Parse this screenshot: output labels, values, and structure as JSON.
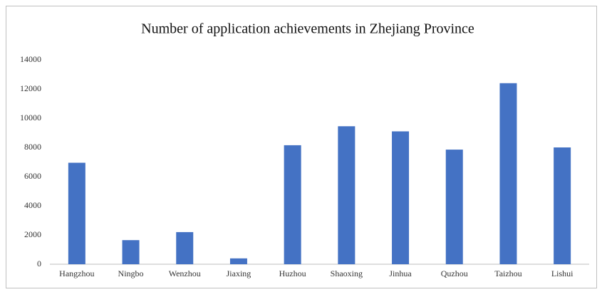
{
  "chart_data": {
    "type": "bar",
    "title": "Number of application achievements in Zhejiang Province",
    "categories": [
      "Hangzhou",
      "Ningbo",
      "Wenzhou",
      "Jiaxing",
      "Huzhou",
      "Shaoxing",
      "Jinhua",
      "Quzhou",
      "Taizhou",
      "Lishui"
    ],
    "values": [
      6950,
      1650,
      2200,
      400,
      8150,
      9450,
      9100,
      7850,
      12400,
      8000
    ],
    "color": "#4472c4",
    "ylim": [
      0,
      14000
    ],
    "yticks": [
      0,
      2000,
      4000,
      6000,
      8000,
      10000,
      12000,
      14000
    ],
    "grid": false
  }
}
